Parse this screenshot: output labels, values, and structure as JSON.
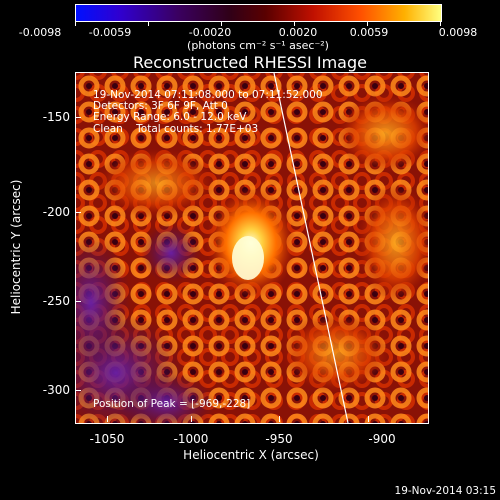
{
  "colorbar": {
    "tick_labels": [
      "-0.0098",
      "-0.0059",
      "-0.0020",
      "0.0020",
      "0.0059",
      "0.0098"
    ],
    "units": "(photons cm⁻² s⁻¹ asec⁻²)"
  },
  "title": "Reconstructed RHESSI Image",
  "info": {
    "time": "19-Nov-2014 07:11:08.000 to 07:11:52.000",
    "detectors": "Detectors: 3F 6F 9F, Att 0",
    "energy": "Energy Range: 6.0 - 12.0 keV",
    "clean": "Clean    Total counts: 1.77E+03",
    "peak": "Position of Peak = [-969,-228]"
  },
  "x_axis": {
    "title": "Heliocentric X (arcsec)",
    "tick_labels": [
      "-1050",
      "-1000",
      "-950",
      "-900"
    ]
  },
  "y_axis": {
    "title": "Heliocentric Y (arcsec)",
    "tick_labels": [
      "-150",
      "-200",
      "-250",
      "-300"
    ]
  },
  "timestamp": "19-Nov-2014 03:15",
  "colors": {
    "limb_line": "#ffffff",
    "background": "#000000"
  }
}
